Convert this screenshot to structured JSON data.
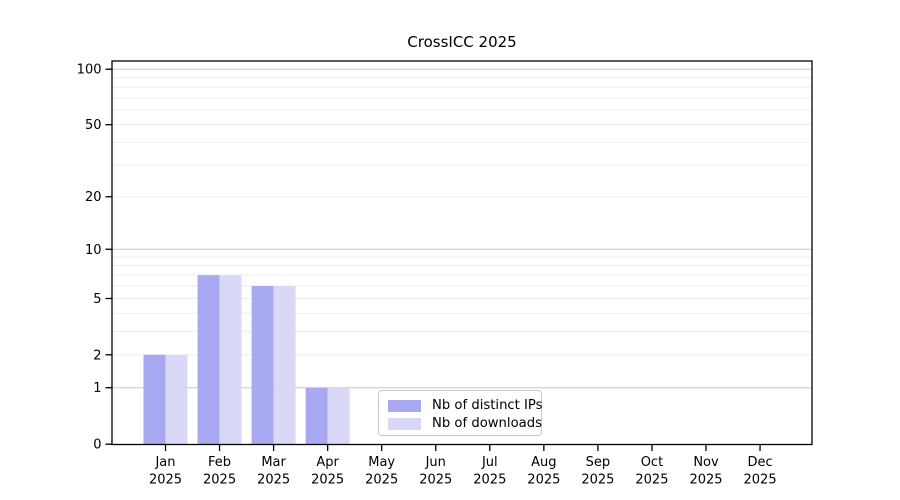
{
  "chart_data": {
    "type": "bar",
    "title": "CrossICC 2025",
    "categories": [
      "Jan",
      "Feb",
      "Mar",
      "Apr",
      "May",
      "Jun",
      "Jul",
      "Aug",
      "Sep",
      "Oct",
      "Nov",
      "Dec"
    ],
    "year": "2025",
    "series": [
      {
        "name": "Nb of distinct IPs",
        "color": "#a9a9f1",
        "values": [
          2,
          7,
          6,
          1,
          0,
          0,
          0,
          0,
          0,
          0,
          0,
          0
        ]
      },
      {
        "name": "Nb of downloads",
        "color": "#d9d9f7",
        "values": [
          2,
          7,
          6,
          1,
          0,
          0,
          0,
          0,
          0,
          0,
          0,
          0
        ]
      }
    ],
    "xlabel": "",
    "ylabel": "",
    "y_ticks": [
      0,
      1,
      2,
      5,
      10,
      20,
      50,
      100
    ],
    "y_minor_gridlines": [
      3,
      4,
      6,
      7,
      8,
      9,
      30,
      40,
      60,
      70,
      80,
      90
    ],
    "scale": "log10(value+1)",
    "ylim": [
      0,
      110
    ],
    "grid": "horizontal",
    "legend_position": "bottom-center",
    "colors": {
      "decade_gridline": "#c8c8c8",
      "minor_gridline": "#ededed",
      "axis": "#000000"
    }
  }
}
